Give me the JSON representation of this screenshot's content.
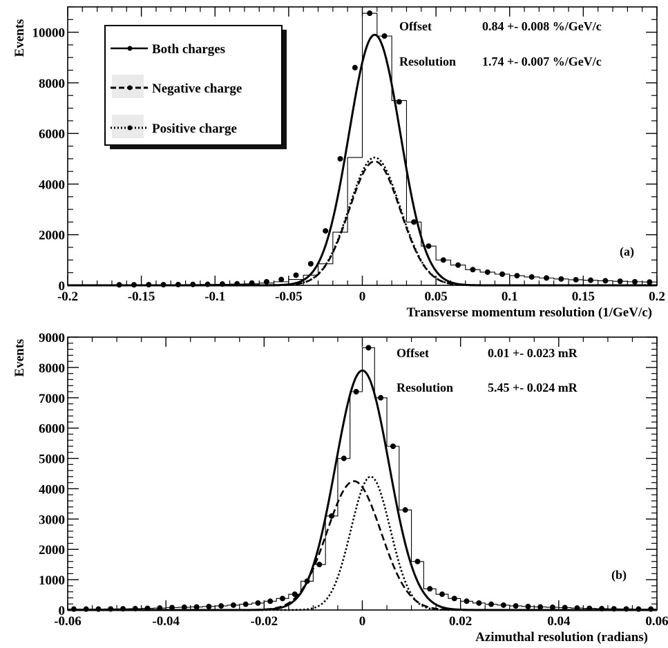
{
  "chart_data": [
    {
      "type": "histogram",
      "xlabel": "Transverse momentum resolution (1/GeV/c)",
      "ylabel": "Events",
      "xlim": [
        -0.2,
        0.2
      ],
      "ylim": [
        0,
        11000
      ],
      "x_ticks": [
        -0.2,
        -0.15,
        -0.1,
        -0.05,
        0,
        0.05,
        0.1,
        0.15,
        0.2
      ],
      "x_tick_labels": [
        "-0.2",
        "-0.15",
        "-0.1",
        "-0.05",
        "0",
        "0.05",
        "0.1",
        "0.15",
        "0.2"
      ],
      "y_ticks": [
        0,
        2000,
        4000,
        6000,
        8000,
        10000
      ],
      "y_tick_labels": [
        "0",
        "2000",
        "4000",
        "6000",
        "8000",
        "10000"
      ],
      "bin_width": 0.01,
      "bins": [
        {
          "x": -0.2,
          "y": 10
        },
        {
          "x": -0.19,
          "y": 10
        },
        {
          "x": -0.18,
          "y": 15
        },
        {
          "x": -0.17,
          "y": 15
        },
        {
          "x": -0.16,
          "y": 20
        },
        {
          "x": -0.15,
          "y": 20
        },
        {
          "x": -0.14,
          "y": 25
        },
        {
          "x": -0.13,
          "y": 25
        },
        {
          "x": -0.12,
          "y": 30
        },
        {
          "x": -0.11,
          "y": 35
        },
        {
          "x": -0.1,
          "y": 40
        },
        {
          "x": -0.09,
          "y": 50
        },
        {
          "x": -0.08,
          "y": 60
        },
        {
          "x": -0.07,
          "y": 90
        },
        {
          "x": -0.06,
          "y": 140
        },
        {
          "x": -0.05,
          "y": 230
        },
        {
          "x": -0.04,
          "y": 400
        },
        {
          "x": -0.03,
          "y": 850
        },
        {
          "x": -0.02,
          "y": 2100
        },
        {
          "x": -0.01,
          "y": 5050
        },
        {
          "x": 0.0,
          "y": 10750
        },
        {
          "x": 0.01,
          "y": 9850
        },
        {
          "x": 0.02,
          "y": 7300
        },
        {
          "x": 0.03,
          "y": 2500
        },
        {
          "x": 0.04,
          "y": 1550
        },
        {
          "x": 0.05,
          "y": 1000
        },
        {
          "x": 0.06,
          "y": 800
        },
        {
          "x": 0.07,
          "y": 620
        },
        {
          "x": 0.08,
          "y": 520
        },
        {
          "x": 0.09,
          "y": 440
        },
        {
          "x": 0.1,
          "y": 380
        },
        {
          "x": 0.11,
          "y": 330
        },
        {
          "x": 0.12,
          "y": 290
        },
        {
          "x": 0.13,
          "y": 250
        },
        {
          "x": 0.14,
          "y": 220
        },
        {
          "x": 0.15,
          "y": 200
        },
        {
          "x": 0.16,
          "y": 180
        },
        {
          "x": 0.17,
          "y": 160
        },
        {
          "x": 0.18,
          "y": 140
        },
        {
          "x": 0.19,
          "y": 130
        }
      ],
      "markers": [
        {
          "x": -0.165,
          "y": 20
        },
        {
          "x": -0.155,
          "y": 20
        },
        {
          "x": -0.145,
          "y": 25
        },
        {
          "x": -0.135,
          "y": 25
        },
        {
          "x": -0.125,
          "y": 30
        },
        {
          "x": -0.115,
          "y": 35
        },
        {
          "x": -0.105,
          "y": 40
        },
        {
          "x": -0.095,
          "y": 50
        },
        {
          "x": -0.085,
          "y": 60
        },
        {
          "x": -0.075,
          "y": 90
        },
        {
          "x": -0.065,
          "y": 140
        },
        {
          "x": -0.055,
          "y": 230
        },
        {
          "x": -0.045,
          "y": 400
        },
        {
          "x": -0.035,
          "y": 850
        },
        {
          "x": -0.025,
          "y": 2150
        },
        {
          "x": -0.015,
          "y": 5000
        },
        {
          "x": -0.005,
          "y": 8600
        },
        {
          "x": 0.005,
          "y": 10750
        },
        {
          "x": 0.015,
          "y": 9850
        },
        {
          "x": 0.025,
          "y": 7250
        },
        {
          "x": 0.035,
          "y": 2500
        },
        {
          "x": 0.045,
          "y": 1550
        },
        {
          "x": 0.055,
          "y": 1000
        },
        {
          "x": 0.065,
          "y": 800
        },
        {
          "x": 0.075,
          "y": 620
        },
        {
          "x": 0.085,
          "y": 520
        },
        {
          "x": 0.095,
          "y": 440
        },
        {
          "x": 0.105,
          "y": 380
        },
        {
          "x": 0.115,
          "y": 330
        },
        {
          "x": 0.125,
          "y": 290
        },
        {
          "x": 0.135,
          "y": 250
        },
        {
          "x": 0.145,
          "y": 220
        },
        {
          "x": 0.155,
          "y": 200
        },
        {
          "x": 0.165,
          "y": 180
        },
        {
          "x": 0.175,
          "y": 160
        },
        {
          "x": 0.185,
          "y": 140
        },
        {
          "x": 0.195,
          "y": 130
        }
      ],
      "series": [
        {
          "name": "Both charges",
          "style": "solid",
          "mean": 0.0084,
          "sigma": 0.0174,
          "amplitude": 9900
        },
        {
          "name": "Negative charge",
          "style": "dashed",
          "mean": 0.0084,
          "sigma": 0.0174,
          "amplitude": 4900
        },
        {
          "name": "Positive charge",
          "style": "dotted",
          "mean": 0.0084,
          "sigma": 0.0174,
          "amplitude": 5050
        }
      ],
      "legend": {
        "position": "top-left"
      },
      "annotations": [
        {
          "text": "Offset",
          "kind": "label"
        },
        {
          "text": "0.84 +-  0.008 %/GeV/c",
          "kind": "value"
        },
        {
          "text": "Resolution",
          "kind": "label"
        },
        {
          "text": "1.74 +-  0.007 %/GeV/c",
          "kind": "value"
        }
      ],
      "panel_label": "(a)"
    },
    {
      "type": "histogram",
      "xlabel": "Azimuthal resolution (radians)",
      "ylabel": "Events",
      "xlim": [
        -0.06,
        0.06
      ],
      "ylim": [
        0,
        9000
      ],
      "x_ticks": [
        -0.06,
        -0.04,
        -0.02,
        0,
        0.02,
        0.04,
        0.06
      ],
      "x_tick_labels": [
        "-0.06",
        "-0.04",
        "-0.02",
        "0",
        "0.02",
        "0.04",
        "0.06"
      ],
      "y_ticks": [
        0,
        1000,
        2000,
        3000,
        4000,
        5000,
        6000,
        7000,
        8000,
        9000
      ],
      "y_tick_labels": [
        "0",
        "1000",
        "2000",
        "3000",
        "4000",
        "5000",
        "6000",
        "7000",
        "8000",
        "9000"
      ],
      "bin_width": 0.0025,
      "bins": [
        {
          "x": -0.06,
          "y": 30
        },
        {
          "x": -0.0575,
          "y": 30
        },
        {
          "x": -0.055,
          "y": 30
        },
        {
          "x": -0.0525,
          "y": 35
        },
        {
          "x": -0.05,
          "y": 40
        },
        {
          "x": -0.0475,
          "y": 45
        },
        {
          "x": -0.045,
          "y": 55
        },
        {
          "x": -0.0425,
          "y": 65
        },
        {
          "x": -0.04,
          "y": 80
        },
        {
          "x": -0.0375,
          "y": 90
        },
        {
          "x": -0.035,
          "y": 100
        },
        {
          "x": -0.0325,
          "y": 115
        },
        {
          "x": -0.03,
          "y": 135
        },
        {
          "x": -0.0275,
          "y": 160
        },
        {
          "x": -0.025,
          "y": 190
        },
        {
          "x": -0.0225,
          "y": 230
        },
        {
          "x": -0.02,
          "y": 290
        },
        {
          "x": -0.0175,
          "y": 380
        },
        {
          "x": -0.015,
          "y": 520
        },
        {
          "x": -0.0125,
          "y": 950
        },
        {
          "x": -0.01,
          "y": 1500
        },
        {
          "x": -0.0075,
          "y": 3100
        },
        {
          "x": -0.005,
          "y": 5000
        },
        {
          "x": -0.0025,
          "y": 7200
        },
        {
          "x": 0.0,
          "y": 8650
        },
        {
          "x": 0.0025,
          "y": 7000
        },
        {
          "x": 0.005,
          "y": 5400
        },
        {
          "x": 0.0075,
          "y": 3300
        },
        {
          "x": 0.01,
          "y": 1600
        },
        {
          "x": 0.0125,
          "y": 700
        },
        {
          "x": 0.015,
          "y": 520
        },
        {
          "x": 0.0175,
          "y": 380
        },
        {
          "x": 0.02,
          "y": 290
        },
        {
          "x": 0.0225,
          "y": 230
        },
        {
          "x": 0.025,
          "y": 190
        },
        {
          "x": 0.0275,
          "y": 160
        },
        {
          "x": 0.03,
          "y": 135
        },
        {
          "x": 0.0325,
          "y": 115
        },
        {
          "x": 0.035,
          "y": 100
        },
        {
          "x": 0.0375,
          "y": 90
        },
        {
          "x": 0.04,
          "y": 80
        },
        {
          "x": 0.0425,
          "y": 65
        },
        {
          "x": 0.045,
          "y": 55
        },
        {
          "x": 0.0475,
          "y": 45
        },
        {
          "x": 0.05,
          "y": 40
        },
        {
          "x": 0.0525,
          "y": 35
        },
        {
          "x": 0.055,
          "y": 30
        },
        {
          "x": 0.0575,
          "y": 30
        }
      ],
      "markers": [
        {
          "x": -0.05875,
          "y": 30
        },
        {
          "x": -0.05625,
          "y": 30
        },
        {
          "x": -0.05375,
          "y": 30
        },
        {
          "x": -0.05125,
          "y": 35
        },
        {
          "x": -0.04875,
          "y": 40
        },
        {
          "x": -0.04625,
          "y": 45
        },
        {
          "x": -0.04375,
          "y": 55
        },
        {
          "x": -0.04125,
          "y": 65
        },
        {
          "x": -0.03875,
          "y": 80
        },
        {
          "x": -0.03625,
          "y": 90
        },
        {
          "x": -0.03375,
          "y": 100
        },
        {
          "x": -0.03125,
          "y": 115
        },
        {
          "x": -0.02875,
          "y": 135
        },
        {
          "x": -0.02625,
          "y": 160
        },
        {
          "x": -0.02375,
          "y": 190
        },
        {
          "x": -0.02125,
          "y": 230
        },
        {
          "x": -0.01875,
          "y": 290
        },
        {
          "x": -0.01625,
          "y": 380
        },
        {
          "x": -0.01375,
          "y": 520
        },
        {
          "x": -0.01125,
          "y": 950
        },
        {
          "x": -0.00875,
          "y": 1500
        },
        {
          "x": -0.00625,
          "y": 3100
        },
        {
          "x": -0.00375,
          "y": 5000
        },
        {
          "x": -0.00125,
          "y": 7200
        },
        {
          "x": 0.00125,
          "y": 8650
        },
        {
          "x": 0.00375,
          "y": 7000
        },
        {
          "x": 0.00625,
          "y": 5400
        },
        {
          "x": 0.00875,
          "y": 3300
        },
        {
          "x": 0.01125,
          "y": 1600
        },
        {
          "x": 0.01375,
          "y": 700
        },
        {
          "x": 0.01625,
          "y": 520
        },
        {
          "x": 0.01875,
          "y": 380
        },
        {
          "x": 0.02125,
          "y": 290
        },
        {
          "x": 0.02375,
          "y": 230
        },
        {
          "x": 0.02625,
          "y": 190
        },
        {
          "x": 0.02875,
          "y": 160
        },
        {
          "x": 0.03125,
          "y": 135
        },
        {
          "x": 0.03375,
          "y": 115
        },
        {
          "x": 0.03625,
          "y": 100
        },
        {
          "x": 0.03875,
          "y": 90
        },
        {
          "x": 0.04125,
          "y": 80
        },
        {
          "x": 0.04375,
          "y": 65
        },
        {
          "x": 0.04625,
          "y": 55
        },
        {
          "x": 0.04875,
          "y": 45
        },
        {
          "x": 0.05125,
          "y": 40
        },
        {
          "x": 0.05375,
          "y": 35
        },
        {
          "x": 0.05625,
          "y": 30
        },
        {
          "x": 0.05875,
          "y": 30
        }
      ],
      "series": [
        {
          "name": "Both charges",
          "style": "solid",
          "mean": 1e-05,
          "sigma": 0.00545,
          "amplitude": 7900
        },
        {
          "name": "Negative charge",
          "style": "dashed",
          "mean": -0.0017,
          "sigma": 0.0055,
          "amplitude": 4250
        },
        {
          "name": "Positive charge",
          "style": "dotted",
          "mean": 0.0017,
          "sigma": 0.004,
          "amplitude": 4400
        }
      ],
      "annotations": [
        {
          "text": "Offset",
          "kind": "label"
        },
        {
          "text": "0.01 +-  0.023 mR",
          "kind": "value"
        },
        {
          "text": "Resolution",
          "kind": "label"
        },
        {
          "text": "5.45 +-  0.024 mR",
          "kind": "value"
        }
      ],
      "panel_label": "(b)"
    }
  ]
}
